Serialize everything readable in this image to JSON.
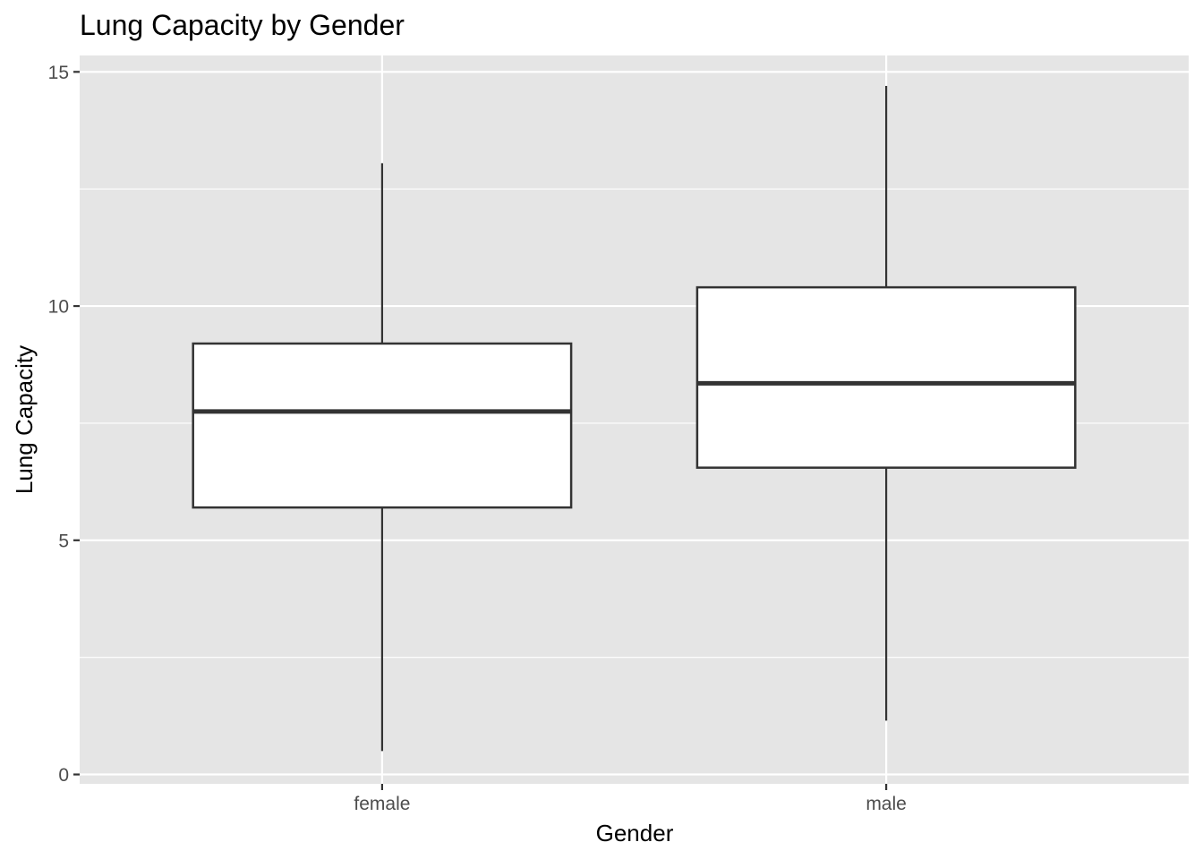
{
  "chart_data": {
    "type": "boxplot",
    "title": "Lung Capacity by Gender",
    "xlabel": "Gender",
    "ylabel": "Lung Capacity",
    "categories": [
      "female",
      "male"
    ],
    "boxes": [
      {
        "category": "female",
        "whisker_low": 0.5,
        "q1": 5.7,
        "median": 7.75,
        "q3": 9.2,
        "whisker_high": 13.05
      },
      {
        "category": "male",
        "whisker_low": 1.15,
        "q1": 6.55,
        "median": 8.35,
        "q3": 10.4,
        "whisker_high": 14.7
      }
    ],
    "y_ticks": [
      0,
      5,
      10,
      15
    ],
    "ylim": [
      -0.2,
      15.35
    ],
    "grid": true,
    "colors": {
      "panel_background": "#e5e5e5",
      "grid_line": "#ffffff",
      "box_fill": "#ffffff",
      "box_stroke": "#333333",
      "tick_text": "#4d4d4d",
      "tick_mark": "#333333"
    }
  }
}
